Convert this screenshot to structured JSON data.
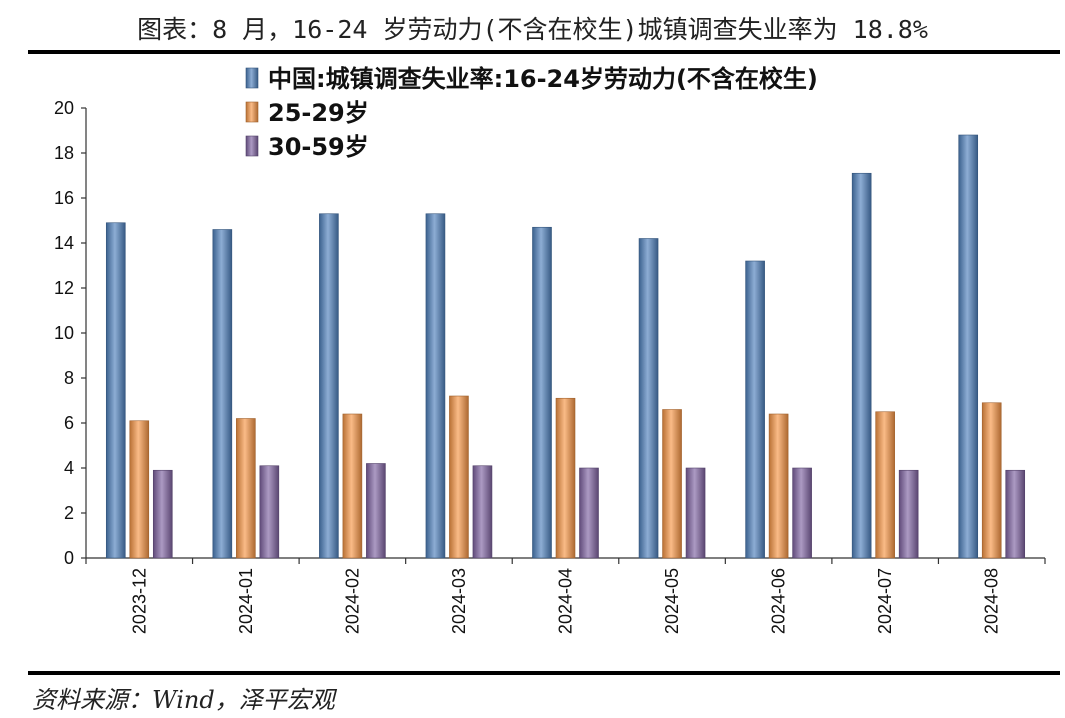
{
  "page": {
    "title": "图表：8 月，16-24 岁劳动力(不含在校生)城镇调查失业率为 18.8%",
    "source": "资料来源：Wind，泽平宏观"
  },
  "chart_data": {
    "type": "bar",
    "categories": [
      "2023-12",
      "2024-01",
      "2024-02",
      "2024-03",
      "2024-04",
      "2024-05",
      "2024-06",
      "2024-07",
      "2024-08"
    ],
    "series": [
      {
        "name": "中国:城镇调查失业率:16-24岁劳动力(不含在校生)",
        "color": "#4f81bd",
        "values": [
          14.9,
          14.6,
          15.3,
          15.3,
          14.7,
          14.2,
          13.2,
          17.1,
          18.8
        ]
      },
      {
        "name": "25-29岁",
        "color": "#f79646",
        "values": [
          6.1,
          6.2,
          6.4,
          7.2,
          7.1,
          6.6,
          6.4,
          6.5,
          6.9
        ]
      },
      {
        "name": "30-59岁",
        "color": "#8064a2",
        "values": [
          3.9,
          4.1,
          4.2,
          4.1,
          4.0,
          4.0,
          4.0,
          3.9,
          3.9
        ]
      }
    ],
    "ylim": [
      0,
      20
    ],
    "yticks": [
      0,
      2,
      4,
      6,
      8,
      10,
      12,
      14,
      16,
      18,
      20
    ],
    "grid": false,
    "legend_position": "top-left",
    "xlabel": "",
    "ylabel": ""
  }
}
